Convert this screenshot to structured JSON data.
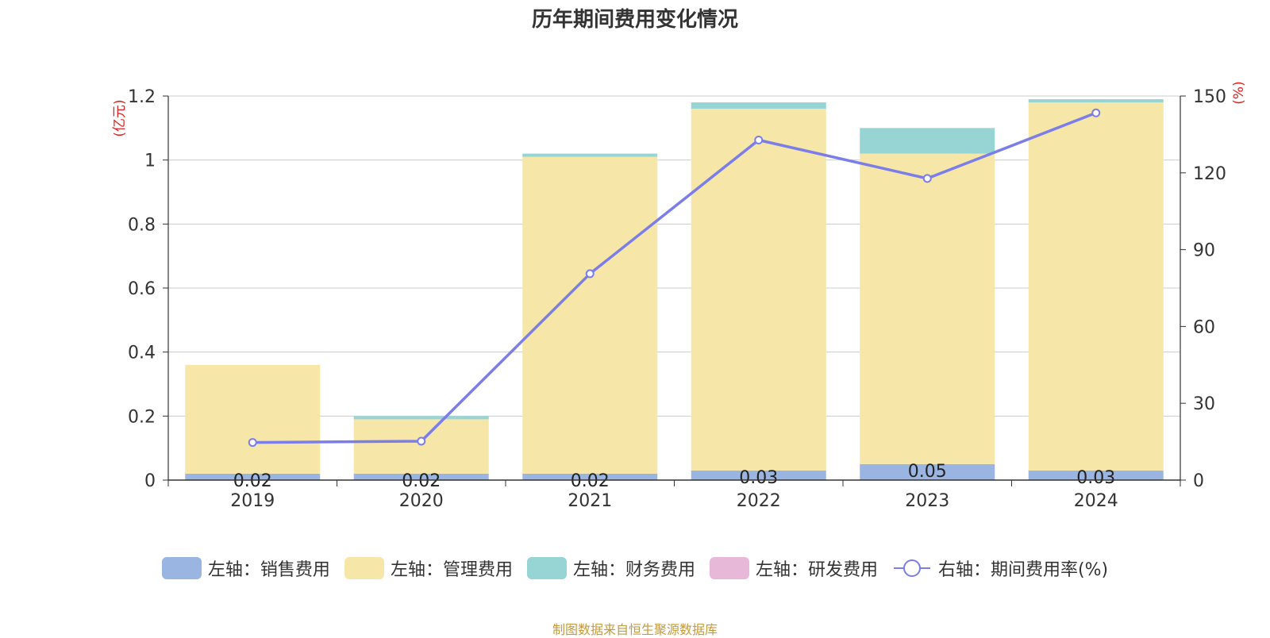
{
  "chart_data": {
    "type": "bar",
    "title": "历年期间费用变化情况",
    "categories": [
      "2019",
      "2020",
      "2021",
      "2022",
      "2023",
      "2024"
    ],
    "series": [
      {
        "name": "左轴：销售费用",
        "axis": "left",
        "stack": "total",
        "color": "#9bb5e2",
        "values": [
          0.02,
          0.02,
          0.02,
          0.03,
          0.05,
          0.03
        ],
        "labels": [
          "0.02",
          "0.02",
          "0.02",
          "0.03",
          "0.05",
          "0.03"
        ]
      },
      {
        "name": "左轴：管理费用",
        "axis": "left",
        "stack": "total",
        "color": "#f6e7a9",
        "values": [
          0.34,
          0.17,
          0.99,
          1.13,
          0.97,
          1.15
        ]
      },
      {
        "name": "左轴：财务费用",
        "axis": "left",
        "stack": "total",
        "color": "#97d4d4",
        "values": [
          0.0,
          0.01,
          0.01,
          0.02,
          0.08,
          0.01
        ]
      },
      {
        "name": "左轴：研发费用",
        "axis": "left",
        "stack": "total",
        "color": "#e8b8d8",
        "values": [
          0,
          0,
          0,
          0,
          0,
          0
        ]
      },
      {
        "name": "右轴：期间费用率(%)",
        "axis": "right",
        "type": "line",
        "color": "#7b7de8",
        "values": [
          14.7,
          15.2,
          80.6,
          132.8,
          117.8,
          143.4
        ]
      }
    ],
    "y_left": {
      "unit": "(亿元)",
      "min": 0,
      "max": 1.2,
      "ticks": [
        "0",
        "0.2",
        "0.4",
        "0.6",
        "0.8",
        "1",
        "1.2"
      ],
      "tick_values": [
        0,
        0.2,
        0.4,
        0.6,
        0.8,
        1,
        1.2
      ]
    },
    "y_right": {
      "unit": "(%)",
      "min": 0,
      "max": 150,
      "ticks": [
        "0",
        "30",
        "60",
        "90",
        "120",
        "150"
      ],
      "tick_values": [
        0,
        30,
        60,
        90,
        120,
        150
      ]
    },
    "grid": true,
    "legend_position": "bottom"
  },
  "footer": {
    "source": "制图数据来自恒生聚源数据库"
  },
  "colors": {
    "axis_left_unit": "#e02020",
    "axis_right_unit": "#e02020",
    "grid": "#cccccc",
    "axis_text": "#333333",
    "source_text": "#c49a3c"
  }
}
